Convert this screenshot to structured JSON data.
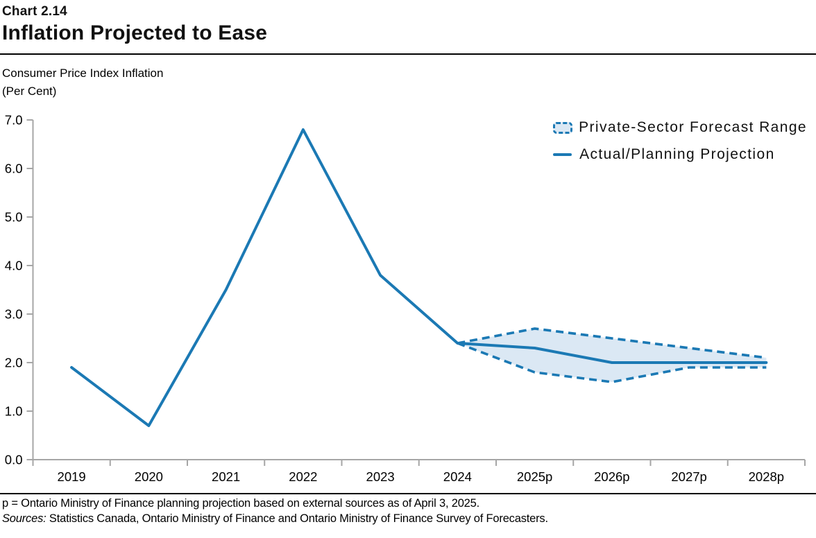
{
  "header": {
    "chart_number": "Chart 2.14",
    "title": "Inflation Projected to Ease",
    "axis_title_line1": "Consumer Price Index Inflation",
    "axis_title_line2": "(Per Cent)"
  },
  "legend": {
    "range_label": "Private-Sector Forecast Range",
    "line_label": "Actual/Planning Projection"
  },
  "footer": {
    "note": "p = Ontario Ministry of Finance planning projection based on external sources as of April 3, 2025.",
    "sources_label": "Sources:",
    "sources_text": " Statistics Canada, Ontario Ministry of Finance and Ontario Ministry of Finance Survey of Forecasters."
  },
  "colors": {
    "line_blue": "#1b79b4",
    "band_fill": "#dbe8f4",
    "axis_gray": "#a6a6a6",
    "text_black": "#000000"
  },
  "chart_data": {
    "type": "line",
    "title": "Inflation Projected to Ease",
    "ylabel": "Consumer Price Index Inflation (Per Cent)",
    "categories": [
      "2019",
      "2020",
      "2021",
      "2022",
      "2023",
      "2024",
      "2025p",
      "2026p",
      "2027p",
      "2028p"
    ],
    "series": [
      {
        "name": "Actual/Planning Projection",
        "role": "main",
        "style": "solid",
        "values": [
          1.9,
          0.7,
          3.5,
          6.8,
          3.8,
          2.4,
          2.3,
          2.0,
          2.0,
          2.0
        ]
      },
      {
        "name": "Private-Sector Forecast Range (upper)",
        "role": "upper",
        "style": "dashed",
        "values": [
          null,
          null,
          null,
          null,
          null,
          2.4,
          2.7,
          2.5,
          2.3,
          2.1
        ]
      },
      {
        "name": "Private-Sector Forecast Range (lower)",
        "role": "lower",
        "style": "dashed",
        "values": [
          null,
          null,
          null,
          null,
          null,
          2.4,
          1.8,
          1.6,
          1.9,
          1.9
        ]
      }
    ],
    "ylim": [
      0,
      7
    ],
    "y_ticks": [
      "0.0",
      "1.0",
      "2.0",
      "3.0",
      "4.0",
      "5.0",
      "6.0",
      "7.0"
    ],
    "grid": false,
    "legend_position": "top-right"
  }
}
